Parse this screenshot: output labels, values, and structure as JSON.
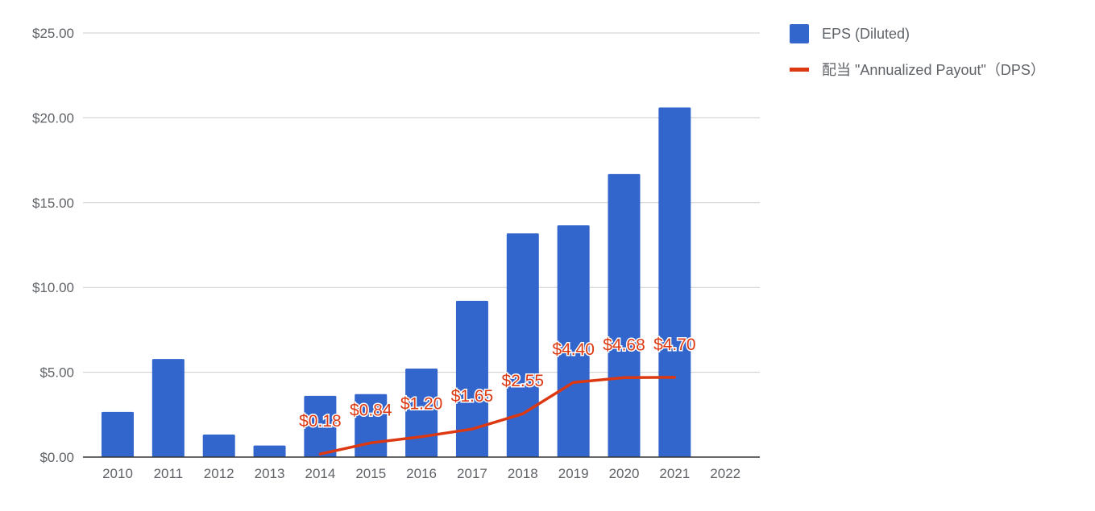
{
  "chart_data": {
    "type": "bar",
    "categories": [
      "2010",
      "2011",
      "2012",
      "2013",
      "2014",
      "2015",
      "2016",
      "2017",
      "2018",
      "2019",
      "2020",
      "2021",
      "2022"
    ],
    "ylim": [
      0,
      25
    ],
    "yticks": [
      0,
      5,
      10,
      15,
      20,
      25
    ],
    "ytick_labels": [
      "$0.00",
      "$5.00",
      "$10.00",
      "$15.00",
      "$20.00",
      "$25.00"
    ],
    "grid": true,
    "legend_position": "right",
    "series": [
      {
        "name": "EPS (Diluted)",
        "type": "bar",
        "color": "#3366cc",
        "values": [
          2.66,
          5.78,
          1.33,
          0.68,
          3.61,
          3.71,
          5.22,
          9.21,
          13.19,
          13.66,
          16.69,
          20.61,
          null
        ]
      },
      {
        "name": "配当 \"Annualized Payout\"（DPS）",
        "type": "line",
        "color": "#dc3912",
        "values": [
          null,
          null,
          null,
          null,
          0.18,
          0.84,
          1.2,
          1.65,
          2.55,
          4.4,
          4.68,
          4.7,
          null
        ],
        "data_labels": [
          null,
          null,
          null,
          null,
          "$0.18",
          "$0.84",
          "$1.20",
          "$1.65",
          "$2.55",
          "$4.40",
          "$4.68",
          "$4.70",
          null
        ]
      }
    ]
  }
}
